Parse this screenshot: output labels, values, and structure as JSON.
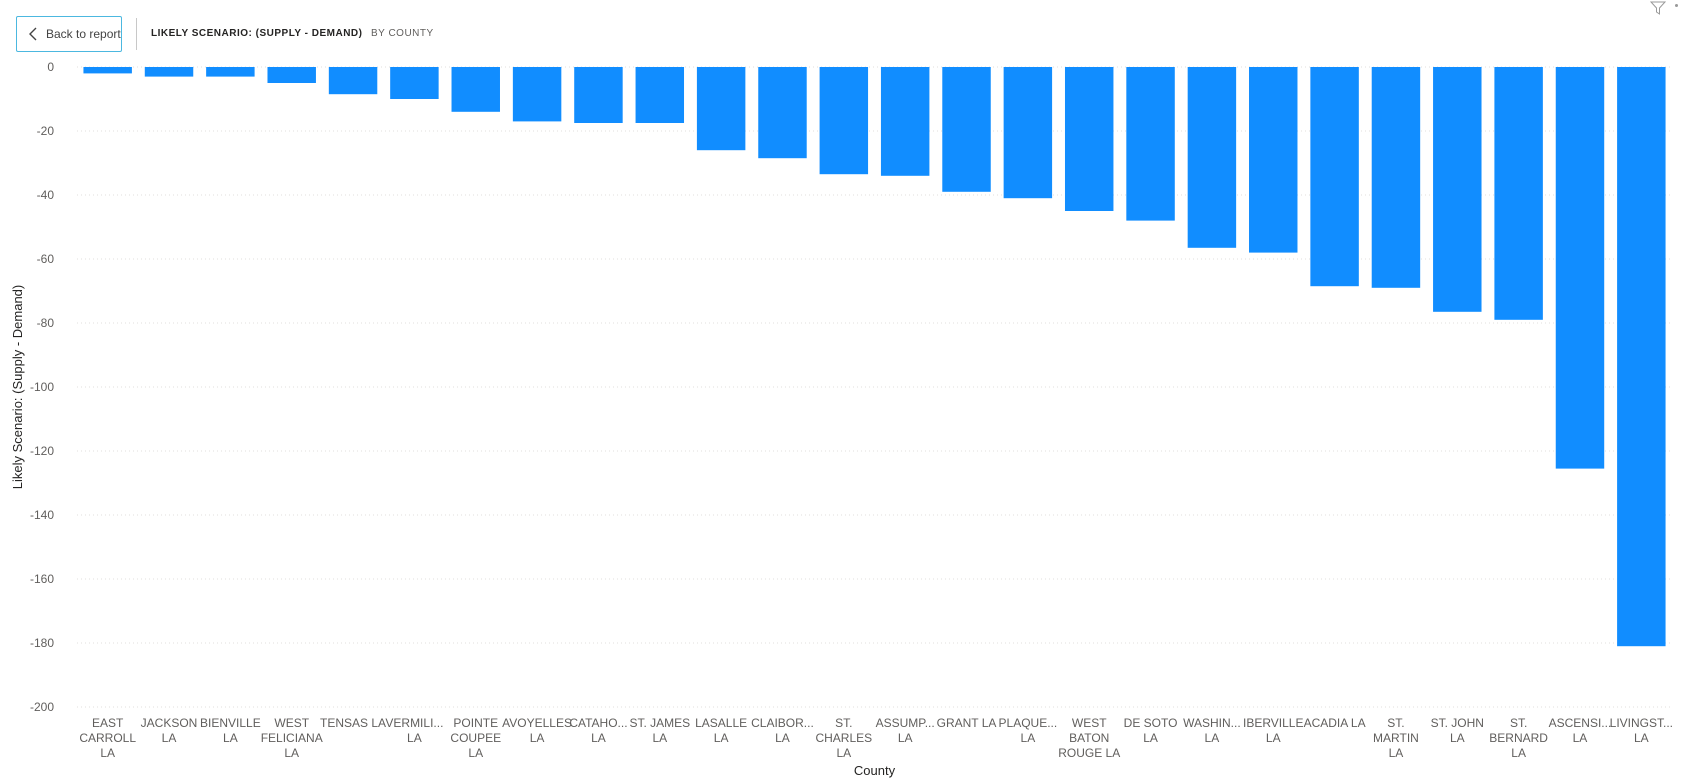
{
  "header": {
    "back_label": "Back to report",
    "title": "LIKELY SCENARIO: (SUPPLY - DEMAND)",
    "subtitle": "BY COUNTY"
  },
  "icons": {
    "back": "chevron-left-icon",
    "filter": "filter-icon",
    "more": "more-options-icon"
  },
  "colors": {
    "bar": "#118dff",
    "gridline": "#e1dfdd",
    "back_border": "#4cb8e0"
  },
  "chart_data": {
    "type": "bar",
    "xlabel": "County",
    "ylabel": "Likely Scenario: (Supply - Demand)",
    "ylim": [
      -200,
      0
    ],
    "yticks": [
      0,
      -20,
      -40,
      -60,
      -80,
      -100,
      -120,
      -140,
      -160,
      -180,
      -200
    ],
    "grid": true,
    "categories": [
      "EAST CARROLL LA",
      "JACKSON LA",
      "BIENVILLE LA",
      "WEST FELICIANA LA",
      "TENSAS LA",
      "VERMILI... LA",
      "POINTE COUPEE LA",
      "AVOYELLES LA",
      "CATAHO... LA",
      "ST. JAMES LA",
      "LASALLE LA",
      "CLAIBOR... LA",
      "ST. CHARLES LA",
      "ASSUMP... LA",
      "GRANT LA",
      "PLAQUE... LA",
      "WEST BATON ROUGE LA",
      "DE SOTO LA",
      "WASHIN... LA",
      "IBERVILLE LA",
      "ACADIA LA",
      "ST. MARTIN LA",
      "ST. JOHN LA",
      "ST. BERNARD LA",
      "ASCENSI... LA",
      "LIVINGST... LA"
    ],
    "category_lines": [
      [
        "EAST",
        "CARROLL",
        "LA"
      ],
      [
        "JACKSON",
        "LA"
      ],
      [
        "BIENVILLE",
        "LA"
      ],
      [
        "WEST",
        "FELICIANA",
        "LA"
      ],
      [
        "TENSAS LA"
      ],
      [
        "VERMILI...",
        "LA"
      ],
      [
        "POINTE",
        "COUPEE",
        "LA"
      ],
      [
        "AVOYELLES",
        "LA"
      ],
      [
        "CATAHO...",
        "LA"
      ],
      [
        "ST. JAMES",
        "LA"
      ],
      [
        "LASALLE",
        "LA"
      ],
      [
        "CLAIBOR...",
        "LA"
      ],
      [
        "ST.",
        "CHARLES",
        "LA"
      ],
      [
        "ASSUMP...",
        "LA"
      ],
      [
        "GRANT LA"
      ],
      [
        "PLAQUE...",
        "LA"
      ],
      [
        "WEST",
        "BATON",
        "ROUGE LA"
      ],
      [
        "DE SOTO",
        "LA"
      ],
      [
        "WASHIN...",
        "LA"
      ],
      [
        "IBERVILLE",
        "LA"
      ],
      [
        "ACADIA LA"
      ],
      [
        "ST.",
        "MARTIN",
        "LA"
      ],
      [
        "ST. JOHN",
        "LA"
      ],
      [
        "ST.",
        "BERNARD",
        "LA"
      ],
      [
        "ASCENSI...",
        "LA"
      ],
      [
        "LIVINGST...",
        "LA"
      ]
    ],
    "values": [
      -2,
      -3,
      -3,
      -5,
      -8.5,
      -10,
      -14,
      -17,
      -17.5,
      -17.5,
      -26,
      -28.5,
      -33.5,
      -34,
      -39,
      -41,
      -45,
      -48,
      -56.5,
      -58,
      -68.5,
      -69,
      -76.5,
      -79,
      -125.5,
      -181
    ]
  }
}
